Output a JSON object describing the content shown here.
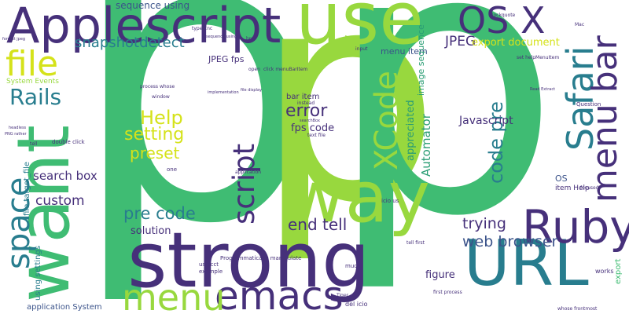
{
  "palette": {
    "dark_purple": "#46307a",
    "blue": "#3b538a",
    "teal": "#287d8e",
    "green_teal": "#2a9d74",
    "green": "#3fbc73",
    "lime": "#98d83e",
    "yellow": "#d5e21a"
  },
  "words": [
    {
      "text": "p",
      "color": "green"
    },
    {
      "text": "p",
      "color": "lime"
    },
    {
      "text": "p",
      "color": "green"
    },
    {
      "text": "want",
      "color": "green"
    },
    {
      "text": "strong",
      "color": "dark_purple"
    },
    {
      "text": "use",
      "color": "lime"
    },
    {
      "text": "Applescript",
      "color": "dark_purple"
    },
    {
      "text": "way",
      "color": "lime"
    },
    {
      "text": "URL",
      "color": "teal"
    },
    {
      "text": "Ruby",
      "color": "dark_purple"
    },
    {
      "text": "emacs",
      "color": "dark_purple"
    },
    {
      "text": "menu",
      "color": "lime"
    },
    {
      "text": "OS X",
      "color": "dark_purple"
    },
    {
      "text": "Safari",
      "color": "teal"
    },
    {
      "text": "menu bar",
      "color": "dark_purple"
    },
    {
      "text": "file",
      "color": "yellow"
    },
    {
      "text": "space",
      "color": "teal"
    },
    {
      "text": "XCode",
      "color": "lime"
    },
    {
      "text": "script",
      "color": "dark_purple"
    },
    {
      "text": "Rails",
      "color": "teal"
    },
    {
      "text": "snapshotdetect",
      "color": "teal"
    },
    {
      "text": "Help",
      "color": "yellow"
    },
    {
      "text": "setting",
      "color": "yellow"
    },
    {
      "text": "preset",
      "color": "yellow"
    },
    {
      "text": "error",
      "color": "dark_purple"
    },
    {
      "text": "code pre",
      "color": "teal"
    },
    {
      "text": "pre code",
      "color": "teal"
    },
    {
      "text": "end tell",
      "color": "dark_purple"
    },
    {
      "text": "web browser",
      "color": "blue"
    },
    {
      "text": "trying",
      "color": "dark_purple"
    },
    {
      "text": "Automator",
      "color": "green_teal"
    },
    {
      "text": "appreciated",
      "color": "green_teal"
    },
    {
      "text": "custom",
      "color": "dark_purple"
    },
    {
      "text": "JPEG",
      "color": "dark_purple"
    },
    {
      "text": "export document",
      "color": "yellow"
    },
    {
      "text": "Javascript",
      "color": "dark_purple"
    },
    {
      "text": "search box",
      "color": "dark_purple"
    },
    {
      "text": "solution",
      "color": "dark_purple"
    },
    {
      "text": "figure",
      "color": "dark_purple"
    },
    {
      "text": "fps code",
      "color": "dark_purple"
    },
    {
      "text": "bar item",
      "color": "dark_purple"
    },
    {
      "text": "sequence using",
      "color": "blue"
    },
    {
      "text": "JPEG fps",
      "color": "dark_purple"
    },
    {
      "text": "menu item",
      "color": "blue"
    },
    {
      "text": "image sequence",
      "color": "green_teal"
    },
    {
      "text": "application System",
      "color": "blue"
    },
    {
      "text": "using settings",
      "color": "teal"
    },
    {
      "text": "file target_file",
      "color": "teal"
    },
    {
      "text": "System Events",
      "color": "lime"
    },
    {
      "text": "OS",
      "color": "blue"
    },
    {
      "text": "item Help",
      "color": "dark_purple"
    },
    {
      "text": "export",
      "color": "green"
    },
    {
      "text": "works",
      "color": "dark_purple"
    },
    {
      "text": "double click",
      "color": "dark_purple"
    },
    {
      "text": "Programmatically manipulate",
      "color": "dark_purple"
    },
    {
      "text": "us acct",
      "color": "dark_purple"
    },
    {
      "text": "example",
      "color": "dark_purple"
    },
    {
      "text": "del icio",
      "color": "dark_purple"
    },
    {
      "text": "icio us",
      "color": "dark_purple"
    },
    {
      "text": "much",
      "color": "dark_purple"
    },
    {
      "text": "one",
      "color": "dark_purple"
    },
    {
      "text": "Question",
      "color": "dark_purple"
    },
    {
      "text": "focused",
      "color": "dark_purple"
    },
    {
      "text": "tell first",
      "color": "dark_purple"
    },
    {
      "text": "first process",
      "color": "dark_purple"
    },
    {
      "text": "whose frontmost",
      "color": "dark_purple"
    },
    {
      "text": "text file",
      "color": "dark_purple"
    },
    {
      "text": "instead",
      "color": "dark_purple"
    },
    {
      "text": "open",
      "color": "dark_purple"
    },
    {
      "text": "click menuBarItem",
      "color": "dark_purple"
    },
    {
      "text": "process whose",
      "color": "dark_purple"
    },
    {
      "text": "window",
      "color": "dark_purple"
    },
    {
      "text": "application",
      "color": "dark_purple"
    },
    {
      "text": "set helpMenuItem",
      "color": "dark_purple"
    },
    {
      "text": "blockquote",
      "color": "dark_purple"
    },
    {
      "text": "Mac",
      "color": "dark_purple"
    },
    {
      "text": "type Enc",
      "color": "dark_purple"
    },
    {
      "text": "href",
      "color": "dark_purple"
    },
    {
      "text": "input",
      "color": "dark_purple"
    },
    {
      "text": "tell",
      "color": "dark_purple"
    },
    {
      "text": "Tiger",
      "color": "dark_purple"
    },
    {
      "text": "file display",
      "color": "dark_purple"
    },
    {
      "text": "implementation",
      "color": "dark_purple"
    },
    {
      "text": "format jpeg",
      "color": "dark_purple"
    },
    {
      "text": "headless",
      "color": "dark_purple"
    },
    {
      "text": "PNG rather",
      "color": "dark_purple"
    },
    {
      "text": "searchBox",
      "color": "dark_purple"
    },
    {
      "text": "sequence using",
      "color": "dark_purple"
    },
    {
      "text": "Read Extract",
      "color": "dark_purple"
    }
  ]
}
